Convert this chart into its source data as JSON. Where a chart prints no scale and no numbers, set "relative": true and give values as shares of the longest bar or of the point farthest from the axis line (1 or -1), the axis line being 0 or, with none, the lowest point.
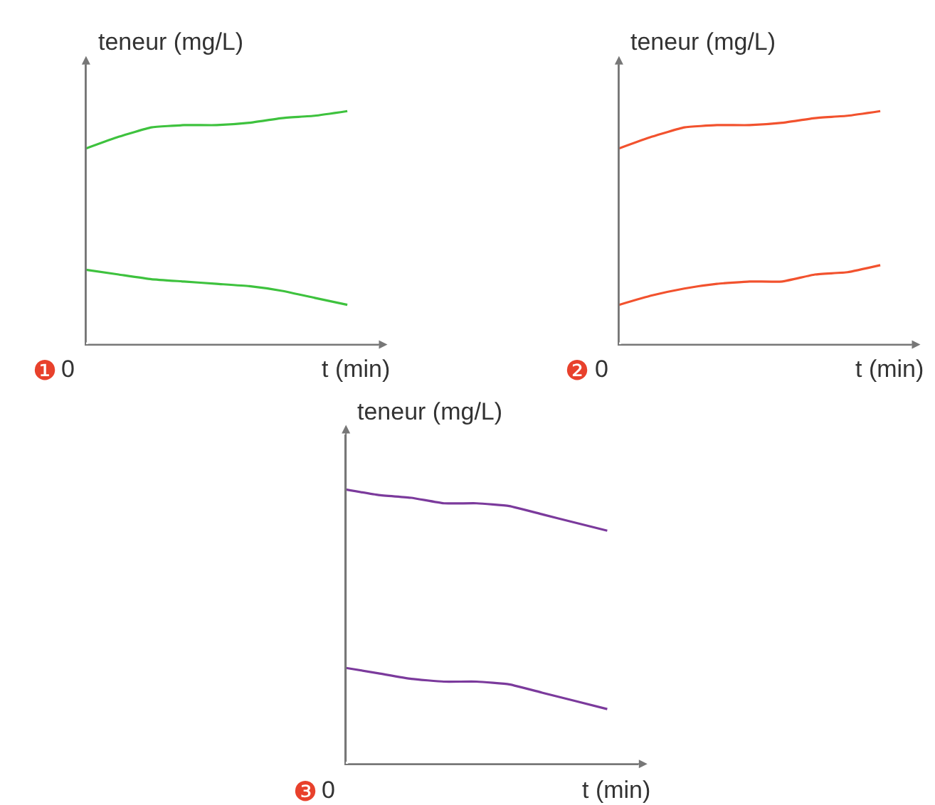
{
  "chart_data": [
    {
      "type": "line",
      "relative": true,
      "xlabel": "t (min)",
      "ylabel": "teneur (mg/L)",
      "annotations": [
        "❶",
        "0"
      ],
      "categories": [
        null,
        null,
        null,
        null,
        null,
        null,
        null,
        null,
        null
      ],
      "series": [
        {
          "color": "#3ec23e",
          "values": [
            0.84,
            0.89,
            0.93,
            0.94,
            0.94,
            0.95,
            0.97,
            0.98,
            1
          ]
        },
        {
          "color": "#3ec23e",
          "values": [
            0.32,
            0.3,
            0.28,
            0.27,
            0.26,
            0.25,
            0.23,
            0.2,
            0.17
          ]
        }
      ]
    },
    {
      "type": "line",
      "relative": true,
      "xlabel": "t (min)",
      "ylabel": "teneur (mg/L)",
      "annotations": [
        "❷",
        "0"
      ],
      "categories": [
        null,
        null,
        null,
        null,
        null,
        null,
        null,
        null,
        null
      ],
      "series": [
        {
          "color": "#f2522e",
          "values": [
            0.84,
            0.89,
            0.93,
            0.94,
            0.94,
            0.95,
            0.97,
            0.98,
            1
          ]
        },
        {
          "color": "#f2522e",
          "values": [
            0.17,
            0.21,
            0.24,
            0.26,
            0.27,
            0.27,
            0.3,
            0.31,
            0.34
          ]
        }
      ]
    },
    {
      "type": "line",
      "relative": true,
      "xlabel": "t (min)",
      "ylabel": "teneur (mg/L)",
      "annotations": [
        "❸",
        "0"
      ],
      "categories": [
        null,
        null,
        null,
        null,
        null,
        null,
        null,
        null,
        null
      ],
      "series": [
        {
          "color": "#7b3a9c",
          "values": [
            1,
            0.98,
            0.97,
            0.95,
            0.95,
            0.94,
            0.91,
            0.88,
            0.85
          ]
        },
        {
          "color": "#7b3a9c",
          "values": [
            0.35,
            0.33,
            0.31,
            0.3,
            0.3,
            0.29,
            0.26,
            0.23,
            0.2
          ]
        }
      ]
    }
  ]
}
